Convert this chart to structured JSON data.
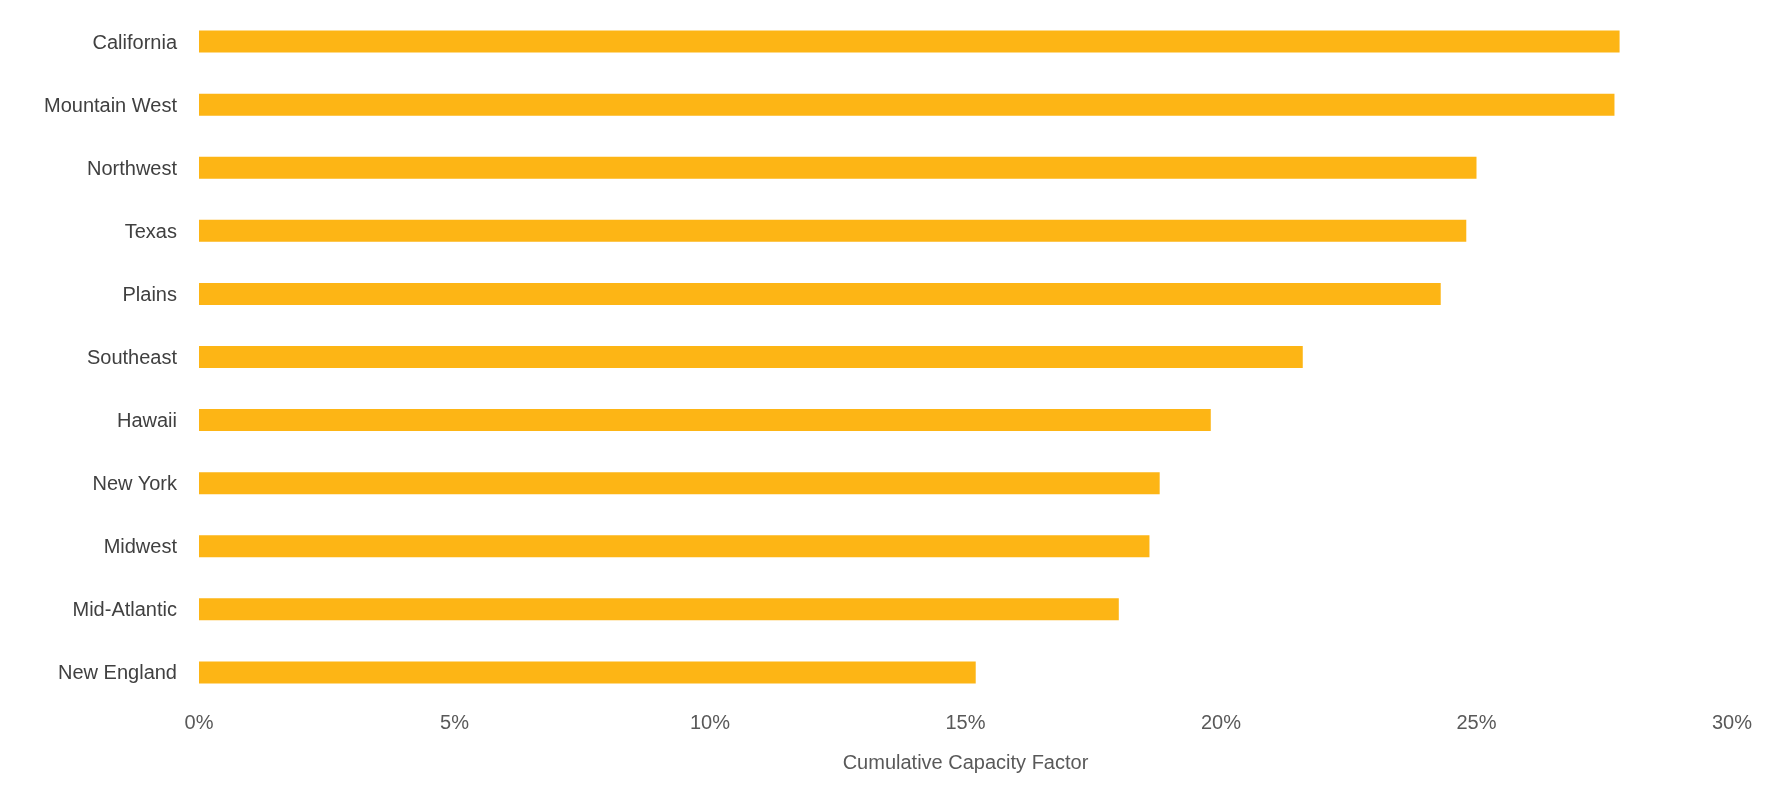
{
  "chart_data": {
    "type": "bar",
    "orientation": "horizontal",
    "xlabel": "Cumulative Capacity Factor",
    "categories": [
      "California",
      "Mountain West",
      "Northwest",
      "Texas",
      "Plains",
      "Southeast",
      "Hawaii",
      "New York",
      "Midwest",
      "Mid-Atlantic",
      "New England"
    ],
    "values": [
      27.8,
      27.7,
      25.0,
      24.8,
      24.3,
      21.6,
      19.8,
      18.8,
      18.6,
      18.0,
      15.2
    ],
    "color": "#fdb515",
    "xlim": [
      0,
      30
    ],
    "xticks": [
      {
        "value": 0,
        "label": "0%"
      },
      {
        "value": 5,
        "label": "5%"
      },
      {
        "value": 10,
        "label": "10%"
      },
      {
        "value": 15,
        "label": "15%"
      },
      {
        "value": 20,
        "label": "20%"
      },
      {
        "value": 25,
        "label": "25%"
      },
      {
        "value": 30,
        "label": "30%"
      }
    ],
    "grid": false
  }
}
